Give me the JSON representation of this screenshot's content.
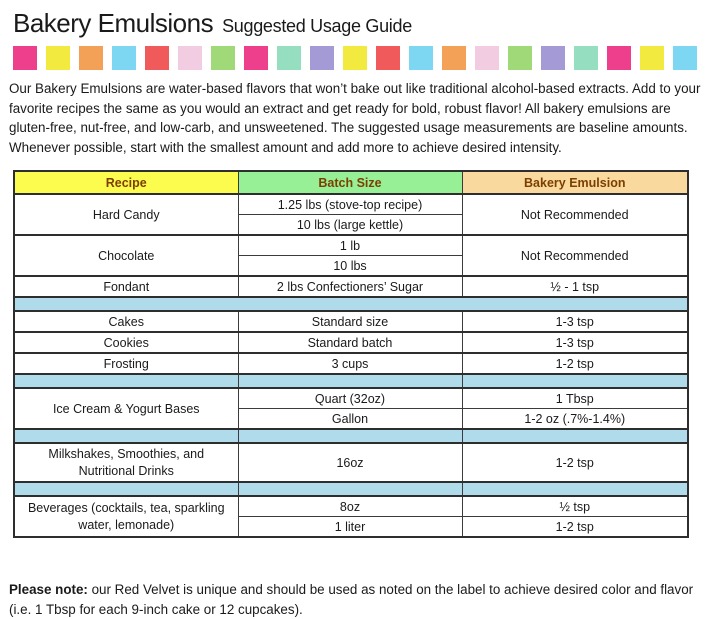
{
  "header": {
    "title": "Bakery Emulsions",
    "subtitle": "Suggested Usage Guide"
  },
  "palette_strip": {
    "colors": [
      "#ED3F8C",
      "#F2EA3E",
      "#F2A157",
      "#7DD6F2",
      "#F05A5A",
      "#F2CCE0",
      "#A0D977",
      "#ED3F8C",
      "#96DEC0",
      "#A49BD6",
      "#F2EA3E",
      "#F05A5A",
      "#7DD6F2",
      "#F2A157",
      "#F2CCE0",
      "#A0D977",
      "#A49BD6",
      "#96DEC0",
      "#ED3F8C",
      "#F2EA3E",
      "#7DD6F2"
    ]
  },
  "intro": "Our Bakery Emulsions are water-based flavors that won’t bake out like traditional alcohol-based extracts. Add to your favorite recipes the same as you would an extract and get ready for bold, robust flavor! All bakery emulsions are gluten-free, nut-free, and low-carb, and unsweetened. The suggested usage measurements are baseline amounts. Whenever possible, start with the smallest amount and add more to achieve desired intensity.",
  "table": {
    "header_text_color": "#7B3F00",
    "separator_color": "#AFDBEA",
    "columns": [
      {
        "label": "Recipe",
        "bg": "#FCFC4E"
      },
      {
        "label": "Batch Size",
        "bg": "#97F095"
      },
      {
        "label": "Bakery Emulsion",
        "bg": "#FAD99E"
      }
    ],
    "rows": {
      "hard_candy": {
        "recipe": "Hard Candy",
        "batch1": "1.25 lbs (stove-top recipe)",
        "batch2": "10 lbs (large kettle)",
        "emulsion": "Not Recommended"
      },
      "chocolate": {
        "recipe": "Chocolate",
        "batch1": "1 lb",
        "batch2": "10 lbs",
        "emulsion": "Not Recommended"
      },
      "fondant": {
        "recipe": "Fondant",
        "batch": "2 lbs Confectioners’ Sugar",
        "emulsion": "½ - 1 tsp"
      },
      "cakes": {
        "recipe": "Cakes",
        "batch": "Standard size",
        "emulsion": "1-3 tsp"
      },
      "cookies": {
        "recipe": "Cookies",
        "batch": "Standard batch",
        "emulsion": "1-3 tsp"
      },
      "frosting": {
        "recipe": "Frosting",
        "batch": "3 cups",
        "emulsion": "1-2 tsp"
      },
      "ice_cream": {
        "recipe": "Ice Cream & Yogurt Bases",
        "batch1": "Quart (32oz)",
        "emulsion1": "1 Tbsp",
        "batch2": "Gallon",
        "emulsion2": "1-2 oz (.7%-1.4%)"
      },
      "milkshakes": {
        "recipe": "Milkshakes, Smoothies, and Nutritional Drinks",
        "batch": "16oz",
        "emulsion": "1-2 tsp"
      },
      "beverages": {
        "recipe": "Beverages (cocktails, tea, sparkling water, lemonade)",
        "batch1": "8oz",
        "emulsion1": "½ tsp",
        "batch2": "1 liter",
        "emulsion2": "1-2 tsp"
      }
    }
  },
  "footnote": {
    "label": "Please note:",
    "text": " our Red Velvet is unique and should be used as noted on the label to achieve desired color and flavor (i.e. 1 Tbsp for each 9-inch cake or 12 cupcakes)."
  }
}
